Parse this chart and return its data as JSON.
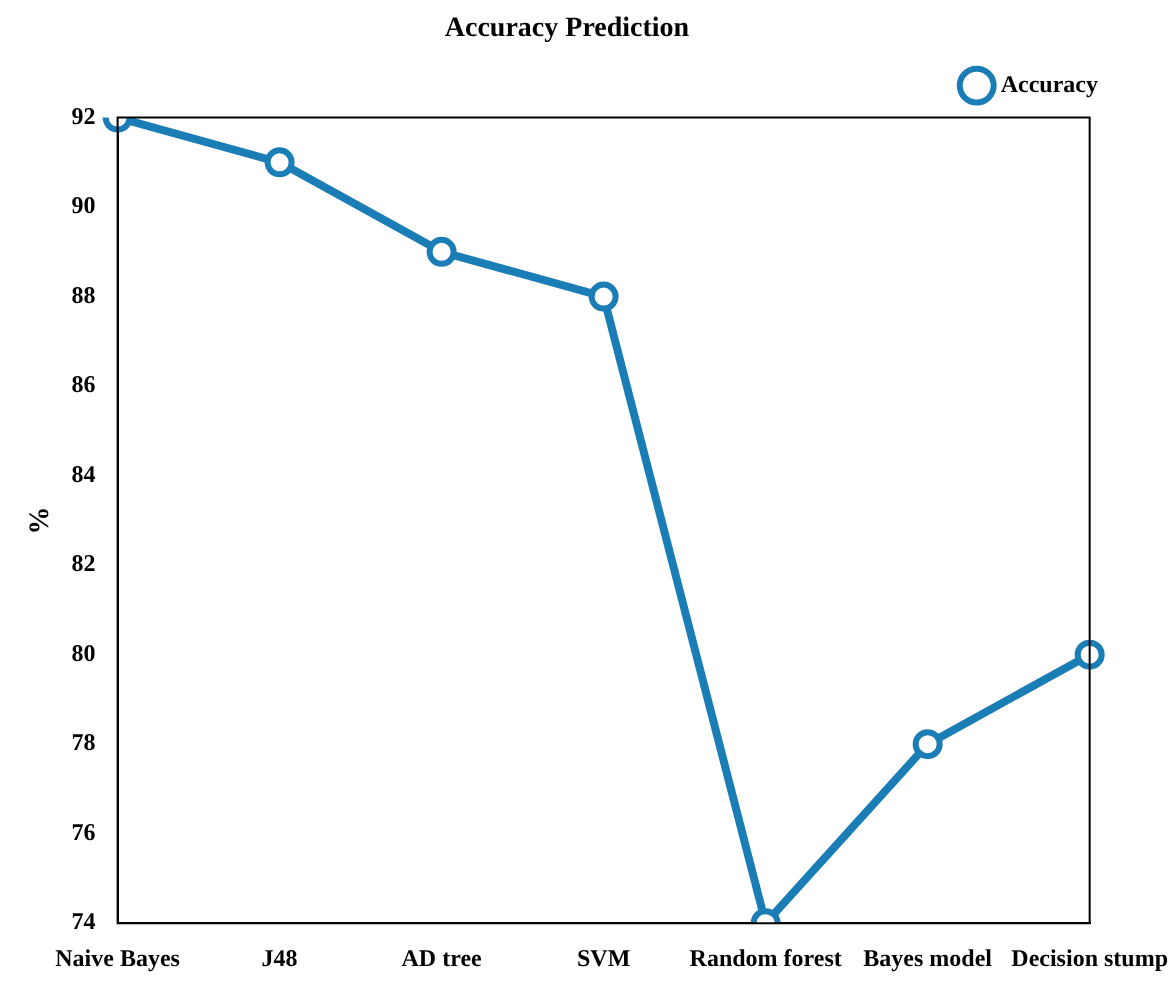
{
  "chart_data": {
    "type": "line",
    "title": "Accuracy Prediction",
    "ylabel": "%",
    "categories": [
      "Naive Bayes",
      "J48",
      "AD tree",
      "SVM",
      "Random forest",
      "Bayes model",
      "Decision stump"
    ],
    "series": [
      {
        "name": "Accuracy",
        "color": "#1b7db5",
        "values": [
          92,
          91,
          89,
          88,
          74,
          78,
          80
        ]
      }
    ],
    "ylim": [
      74,
      92
    ],
    "yticks": [
      74,
      76,
      78,
      80,
      82,
      84,
      86,
      88,
      90,
      92
    ],
    "grid": false,
    "legend": "top right",
    "marker": "circle",
    "line_style": "solid"
  }
}
